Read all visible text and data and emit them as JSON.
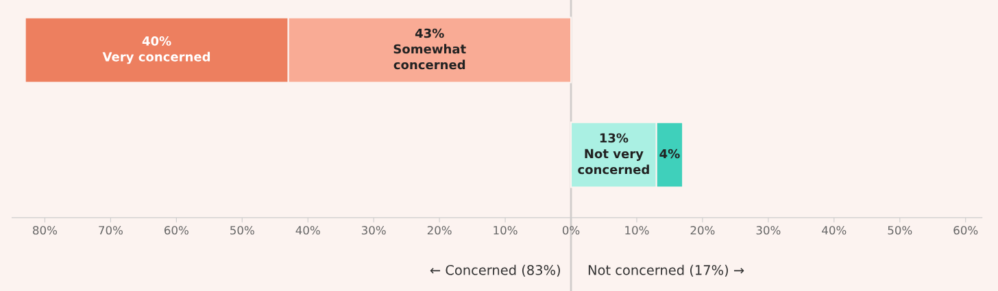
{
  "chart_data": {
    "type": "bar",
    "orientation": "horizontal",
    "categories": [
      null,
      null
    ],
    "series": [
      {
        "name": "Somewhat\nconcerned",
        "color": "#f9ab95",
        "values": [
          43,
          null
        ],
        "base": [
          -43,
          null
        ],
        "value_labels": [
          "43%",
          null
        ]
      },
      {
        "name": "Very concerned",
        "color": "#ed7f5f",
        "values": [
          40,
          null
        ],
        "base": [
          -83,
          null
        ],
        "value_labels": [
          "40%",
          null
        ]
      },
      {
        "name": "Not very\nconcerned",
        "color": "#aaf0e3",
        "values": [
          null,
          13
        ],
        "base": [
          null,
          0
        ],
        "value_labels": [
          null,
          "13%"
        ]
      },
      {
        "color": "#3fd0bb",
        "values": [
          null,
          4
        ],
        "base": [
          null,
          13
        ],
        "value_labels": [
          null,
          "4%"
        ]
      }
    ],
    "xlim": [
      -85,
      62.5
    ],
    "xticks": [
      {
        "value": -80,
        "label": "80%"
      },
      {
        "value": -70,
        "label": "70%"
      },
      {
        "value": -60,
        "label": "60%"
      },
      {
        "value": -50,
        "label": "50%"
      },
      {
        "value": -40,
        "label": "40%"
      },
      {
        "value": -30,
        "label": "30%"
      },
      {
        "value": -20,
        "label": "20%"
      },
      {
        "value": -10,
        "label": "10%"
      },
      {
        "value": 0,
        "label": "0%"
      },
      {
        "value": 10,
        "label": "10%"
      },
      {
        "value": 20,
        "label": "20%"
      },
      {
        "value": 30,
        "label": "30%"
      },
      {
        "value": 40,
        "label": "40%"
      },
      {
        "value": 50,
        "label": "50%"
      },
      {
        "value": 60,
        "label": "60%"
      }
    ],
    "ref_lines": [
      {
        "axis": "x",
        "value": 0,
        "color": "#d0cccb"
      }
    ],
    "annotations": [
      "← Concerned (83%)",
      "Not concerned (17%) →"
    ],
    "grid": false,
    "legend": false
  }
}
